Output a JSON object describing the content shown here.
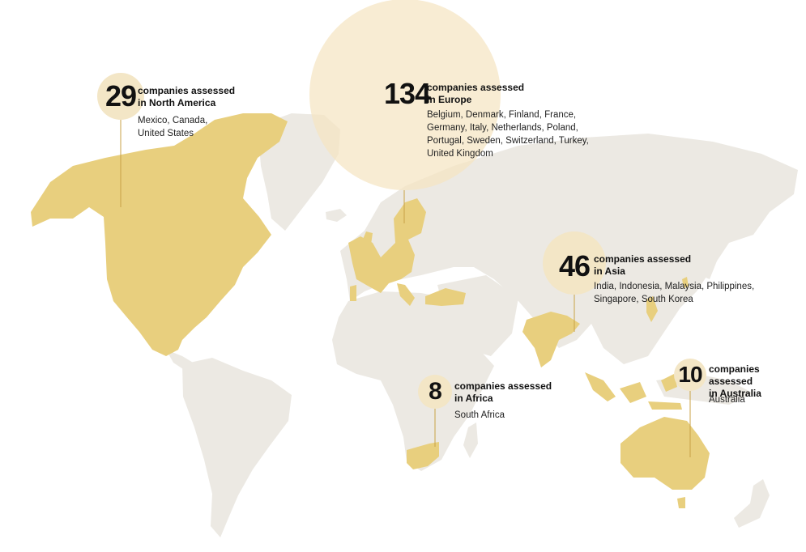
{
  "regions": [
    {
      "id": "north-america",
      "count": "29",
      "label_line1": "companies assessed",
      "label_line2": "in North America",
      "countries": "Mexico, Canada, United States"
    },
    {
      "id": "europe",
      "count": "134",
      "label_line1": "companies assessed",
      "label_line2": "in Europe",
      "countries": "Belgium, Denmark, Finland, France, Germany, Italy, Netherlands, Poland, Portugal, Sweden, Switzerland, Turkey, United Kingdom"
    },
    {
      "id": "asia",
      "count": "46",
      "label_line1": "companies assessed",
      "label_line2": "in Asia",
      "countries": "India, Indonesia, Malaysia, Philippines, Singapore, South Korea"
    },
    {
      "id": "africa",
      "count": "8",
      "label_line1": "companies assessed",
      "label_line2": "in Africa",
      "countries": "South Africa"
    },
    {
      "id": "australia",
      "count": "10",
      "label_line1": "companies assessed",
      "label_line2": "in Australia",
      "countries": "Australia"
    }
  ],
  "colors": {
    "land": "#ece9e3",
    "highlight": "#e8cf7e",
    "bubble": "#f3e6c6",
    "leader": "#c8a246"
  }
}
